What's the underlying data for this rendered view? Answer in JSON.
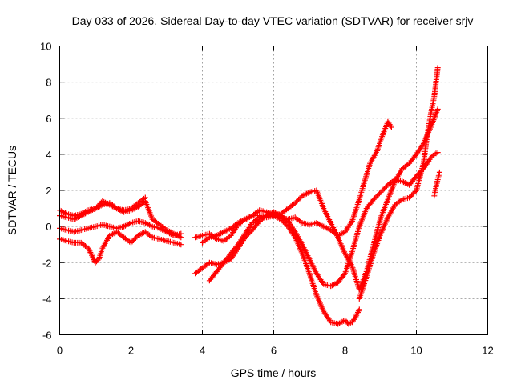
{
  "chart_data": {
    "type": "scatter",
    "title": "Day 033 of 2026, Sidereal Day-to-day VTEC variation (SDTVAR) for receiver srjv",
    "xlabel": "GPS time / hours",
    "ylabel": "SDTVAR / TECUs",
    "xlim": [
      0,
      12
    ],
    "ylim": [
      -6,
      10
    ],
    "xticks": [
      0,
      2,
      4,
      6,
      8,
      10,
      12
    ],
    "yticks": [
      -6,
      -4,
      -2,
      0,
      2,
      4,
      6,
      8,
      10
    ],
    "grid": true,
    "marker": "plus",
    "color": "#ff0000",
    "series": [
      {
        "x": [
          0.0,
          0.2,
          0.4,
          0.6,
          0.8,
          1.0,
          1.2,
          1.4,
          1.6,
          1.8,
          2.0,
          2.2,
          2.4,
          2.6,
          2.8,
          3.0,
          3.2,
          3.4
        ],
        "y": [
          0.9,
          0.7,
          0.6,
          0.7,
          0.9,
          1.0,
          1.2,
          1.3,
          1.0,
          0.8,
          0.9,
          1.1,
          1.4,
          0.4,
          0.1,
          -0.2,
          -0.4,
          -0.6
        ]
      },
      {
        "x": [
          0.0,
          0.2,
          0.4,
          0.6,
          0.8,
          1.0,
          1.2,
          1.4,
          1.6,
          1.8,
          2.0,
          2.2,
          2.4
        ],
        "y": [
          0.6,
          0.5,
          0.4,
          0.6,
          0.8,
          1.0,
          1.4,
          1.2,
          1.0,
          0.9,
          1.0,
          1.3,
          1.6
        ]
      },
      {
        "x": [
          0.0,
          0.2,
          0.4,
          0.6,
          0.8,
          1.0,
          1.2,
          1.4,
          1.6,
          1.8,
          2.0,
          2.2,
          2.4,
          2.6,
          2.8,
          3.0,
          3.2,
          3.4
        ],
        "y": [
          -0.1,
          -0.2,
          -0.3,
          -0.2,
          -0.1,
          0.0,
          0.1,
          0.0,
          -0.1,
          0.0,
          0.2,
          0.3,
          0.2,
          0.0,
          -0.1,
          -0.3,
          -0.5,
          -0.4
        ]
      },
      {
        "x": [
          0.0,
          0.2,
          0.4,
          0.6,
          0.8,
          0.9,
          1.0,
          1.1,
          1.2,
          1.4,
          1.6,
          1.8,
          2.0,
          2.2,
          2.4,
          2.6,
          2.8,
          3.0,
          3.2,
          3.4
        ],
        "y": [
          -0.7,
          -0.8,
          -0.9,
          -0.9,
          -1.2,
          -1.6,
          -2.0,
          -1.8,
          -1.2,
          -0.5,
          -0.3,
          -0.6,
          -0.9,
          -0.5,
          -0.3,
          -0.6,
          -0.7,
          -0.8,
          -0.9,
          -1.0
        ]
      },
      {
        "x": [
          3.8,
          4.0,
          4.2,
          4.4,
          4.6,
          4.8,
          5.0,
          5.2,
          5.4,
          5.6,
          5.8,
          6.0,
          6.2,
          6.4,
          6.6,
          6.8,
          7.0,
          7.2,
          7.4,
          7.6,
          7.8,
          8.0,
          8.2,
          8.4,
          8.6,
          8.8,
          9.0,
          9.2,
          9.4,
          9.6,
          9.8,
          10.0,
          10.2,
          10.4,
          10.5,
          10.6
        ],
        "y": [
          -0.6,
          -0.5,
          -0.4,
          -0.7,
          -0.8,
          -0.5,
          0.1,
          0.4,
          0.6,
          0.9,
          0.8,
          0.6,
          0.7,
          1.0,
          1.3,
          1.7,
          1.9,
          2.0,
          1.0,
          0.2,
          -0.6,
          -1.5,
          -2.2,
          -3.5,
          -2.5,
          -1.0,
          0.5,
          1.5,
          2.5,
          3.2,
          3.5,
          4.0,
          4.6,
          5.5,
          6.0,
          6.5
        ]
      },
      {
        "x": [
          3.8,
          4.0,
          4.2,
          4.4,
          4.6,
          4.8,
          5.0,
          5.2,
          5.4,
          5.6,
          5.8,
          6.0,
          6.2,
          6.4,
          6.6,
          6.8,
          7.0,
          7.2,
          7.4,
          7.6,
          7.8,
          8.0,
          8.2,
          8.4,
          8.5,
          8.7,
          8.9,
          9.0,
          9.2,
          9.3
        ],
        "y": [
          -2.6,
          -2.3,
          -2.0,
          -2.1,
          -2.0,
          -1.8,
          -1.2,
          -0.6,
          -0.2,
          0.3,
          0.6,
          0.8,
          0.5,
          0.4,
          0.5,
          0.2,
          0.1,
          0.2,
          0.0,
          -0.2,
          -0.5,
          -0.3,
          0.3,
          1.5,
          2.2,
          3.5,
          4.2,
          4.8,
          5.8,
          5.5
        ]
      },
      {
        "x": [
          4.2,
          4.4,
          4.6,
          4.8,
          5.0,
          5.2,
          5.4,
          5.6,
          5.8,
          6.0,
          6.2,
          6.4,
          6.6,
          6.8,
          7.0,
          7.2,
          7.4,
          7.6,
          7.8,
          8.0,
          8.2,
          8.4,
          8.6,
          8.8,
          9.0,
          9.2,
          9.4,
          9.6,
          9.8,
          10.0,
          10.2,
          10.4,
          10.5,
          10.6
        ],
        "y": [
          -3.0,
          -2.5,
          -2.0,
          -1.5,
          -1.0,
          -0.4,
          0.2,
          0.5,
          0.6,
          0.8,
          0.6,
          0.3,
          -0.3,
          -1.0,
          -1.8,
          -2.6,
          -3.2,
          -3.3,
          -3.1,
          -2.6,
          -1.4,
          0.0,
          1.0,
          1.5,
          1.9,
          2.3,
          2.6,
          2.5,
          2.3,
          2.8,
          3.2,
          3.8,
          4.0,
          4.1
        ]
      },
      {
        "x": [
          4.0,
          4.2,
          4.4,
          4.6,
          4.8,
          5.0,
          5.2,
          5.4,
          5.6,
          5.8,
          6.0,
          6.2,
          6.4,
          6.6,
          6.8,
          7.0,
          7.2,
          7.4,
          7.6,
          7.8,
          8.0,
          8.1,
          8.2,
          8.3,
          8.4
        ],
        "y": [
          -0.9,
          -0.6,
          -0.5,
          -0.3,
          -0.1,
          0.2,
          0.4,
          0.6,
          0.6,
          0.5,
          0.6,
          0.4,
          0.0,
          -0.6,
          -1.5,
          -2.6,
          -3.8,
          -4.7,
          -5.3,
          -5.4,
          -5.2,
          -5.4,
          -5.3,
          -5.0,
          -4.6
        ]
      },
      {
        "x": [
          8.4,
          8.6,
          8.8,
          9.0,
          9.2,
          9.4,
          9.6,
          9.8,
          10.0,
          10.2,
          10.3,
          10.4,
          10.5,
          10.6
        ],
        "y": [
          -4.0,
          -2.8,
          -1.5,
          -0.4,
          0.5,
          1.2,
          1.5,
          1.6,
          2.0,
          3.5,
          5.0,
          6.2,
          7.2,
          8.8
        ]
      },
      {
        "x": [
          10.5,
          10.55,
          10.6,
          10.65
        ],
        "y": [
          1.7,
          2.2,
          2.6,
          3.0
        ]
      }
    ]
  }
}
